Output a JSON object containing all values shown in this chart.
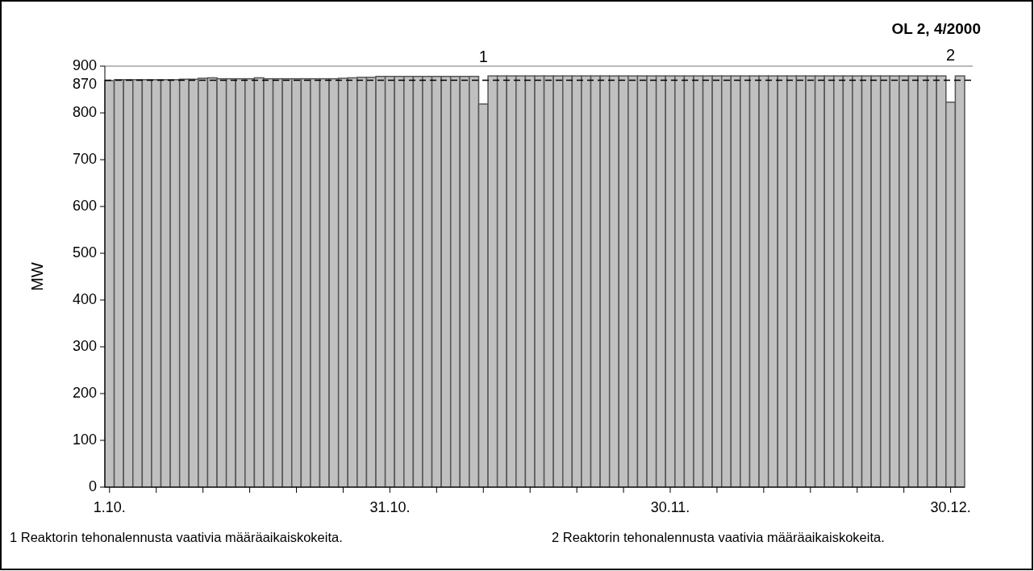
{
  "chart_data": {
    "type": "bar",
    "title": "OL 2, 4/2000",
    "ylabel": "MW",
    "x": [
      "2000-10-01",
      "2000-10-02",
      "2000-10-03",
      "2000-10-04",
      "2000-10-05",
      "2000-10-06",
      "2000-10-07",
      "2000-10-08",
      "2000-10-09",
      "2000-10-10",
      "2000-10-11",
      "2000-10-12",
      "2000-10-13",
      "2000-10-14",
      "2000-10-15",
      "2000-10-16",
      "2000-10-17",
      "2000-10-18",
      "2000-10-19",
      "2000-10-20",
      "2000-10-21",
      "2000-10-22",
      "2000-10-23",
      "2000-10-24",
      "2000-10-25",
      "2000-10-26",
      "2000-10-27",
      "2000-10-28",
      "2000-10-29",
      "2000-10-30",
      "2000-10-31",
      "2000-11-01",
      "2000-11-02",
      "2000-11-03",
      "2000-11-04",
      "2000-11-05",
      "2000-11-06",
      "2000-11-07",
      "2000-11-08",
      "2000-11-09",
      "2000-11-10",
      "2000-11-11",
      "2000-11-12",
      "2000-11-13",
      "2000-11-14",
      "2000-11-15",
      "2000-11-16",
      "2000-11-17",
      "2000-11-18",
      "2000-11-19",
      "2000-11-20",
      "2000-11-21",
      "2000-11-22",
      "2000-11-23",
      "2000-11-24",
      "2000-11-25",
      "2000-11-26",
      "2000-11-27",
      "2000-11-28",
      "2000-11-29",
      "2000-11-30",
      "2000-12-01",
      "2000-12-02",
      "2000-12-03",
      "2000-12-04",
      "2000-12-05",
      "2000-12-06",
      "2000-12-07",
      "2000-12-08",
      "2000-12-09",
      "2000-12-10",
      "2000-12-11",
      "2000-12-12",
      "2000-12-13",
      "2000-12-14",
      "2000-12-15",
      "2000-12-16",
      "2000-12-17",
      "2000-12-18",
      "2000-12-19",
      "2000-12-20",
      "2000-12-21",
      "2000-12-22",
      "2000-12-23",
      "2000-12-24",
      "2000-12-25",
      "2000-12-26",
      "2000-12-27",
      "2000-12-28",
      "2000-12-29",
      "2000-12-30",
      "2000-12-31"
    ],
    "values": [
      869,
      871,
      871,
      871,
      871,
      871,
      871,
      871,
      872,
      872,
      874,
      875,
      873,
      873,
      873,
      873,
      875,
      873,
      873,
      873,
      873,
      873,
      873,
      873,
      873,
      874,
      875,
      876,
      876,
      878,
      878,
      878,
      878,
      878,
      878,
      878,
      878,
      878,
      878,
      878,
      819,
      879,
      879,
      879,
      879,
      879,
      879,
      879,
      879,
      879,
      879,
      879,
      879,
      879,
      879,
      879,
      879,
      879,
      879,
      879,
      879,
      879,
      879,
      879,
      879,
      879,
      879,
      879,
      879,
      879,
      879,
      879,
      879,
      879,
      879,
      879,
      879,
      879,
      879,
      879,
      879,
      879,
      879,
      879,
      879,
      879,
      879,
      879,
      879,
      879,
      823,
      879
    ],
    "color": "#c0c0c0",
    "xlim": [
      "2000-09-30T12:00",
      "2000-12-31T12:00"
    ],
    "xticks": [
      {
        "value": "2000-10-01",
        "label": "1.10."
      },
      {
        "value": "2000-10-06",
        "label": null
      },
      {
        "value": "2000-10-11",
        "label": null
      },
      {
        "value": "2000-10-16",
        "label": null
      },
      {
        "value": "2000-10-21",
        "label": null
      },
      {
        "value": "2000-10-26",
        "label": null
      },
      {
        "value": "2000-10-31",
        "label": "31.10."
      },
      {
        "value": "2000-11-05",
        "label": null
      },
      {
        "value": "2000-11-10",
        "label": null
      },
      {
        "value": "2000-11-15",
        "label": null
      },
      {
        "value": "2000-11-20",
        "label": null
      },
      {
        "value": "2000-11-25",
        "label": null
      },
      {
        "value": "2000-11-30",
        "label": "30.11."
      },
      {
        "value": "2000-12-05",
        "label": null
      },
      {
        "value": "2000-12-10",
        "label": null
      },
      {
        "value": "2000-12-15",
        "label": null
      },
      {
        "value": "2000-12-20",
        "label": null
      },
      {
        "value": "2000-12-25",
        "label": null
      },
      {
        "value": "2000-12-30",
        "label": "30.12."
      }
    ],
    "ylim": [
      0,
      900
    ],
    "yticks": [
      0,
      100,
      200,
      300,
      400,
      500,
      600,
      700,
      800,
      900
    ],
    "ref_lines": [
      {
        "axis": "y",
        "value": 870,
        "label": "870",
        "line_style": "dashed"
      }
    ],
    "annotations": [
      {
        "text": "1",
        "x": "2000-11-10",
        "y": 819
      },
      {
        "text": "2",
        "x": "2000-12-30",
        "y": 823
      },
      "1 Reaktorin tehonalennusta vaativia määräaikaiskokeita.",
      "2 Reaktorin tehonalennusta vaativia määräaikaiskokeita."
    ]
  }
}
